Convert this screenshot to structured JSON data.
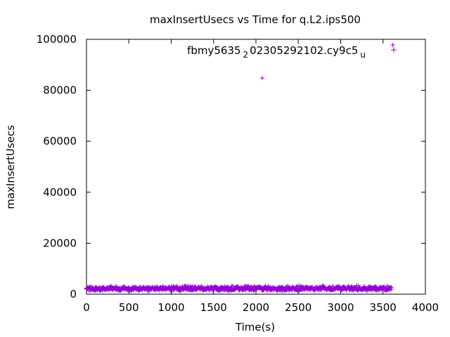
{
  "chart_data": {
    "type": "scatter",
    "title": "maxInsertUsecs vs Time for q.L2.ips500",
    "xlabel": "Time(s)",
    "ylabel": "maxInsertUsecs",
    "xlim": [
      0,
      4000
    ],
    "ylim": [
      0,
      100000
    ],
    "xticks": [
      0,
      500,
      1000,
      1500,
      2000,
      2500,
      3000,
      3500,
      4000
    ],
    "yticks": [
      0,
      20000,
      40000,
      60000,
      80000,
      100000
    ],
    "grid": false,
    "legend": {
      "position": "top-right",
      "label_parts": [
        "fbmy5635",
        "2",
        "02305292102.cy9c5",
        "u"
      ]
    },
    "series": [
      {
        "name": "fbmy5635_202305292102.cy9c5_u",
        "color": "#9400d3",
        "marker": "+",
        "dense_band": {
          "x_range": [
            0,
            3600
          ],
          "y_range": [
            1200,
            3400
          ],
          "typical": 2200
        },
        "outliers": [
          {
            "x": 2075,
            "y": 84800
          },
          {
            "x": 3615,
            "y": 97800
          }
        ]
      }
    ]
  }
}
